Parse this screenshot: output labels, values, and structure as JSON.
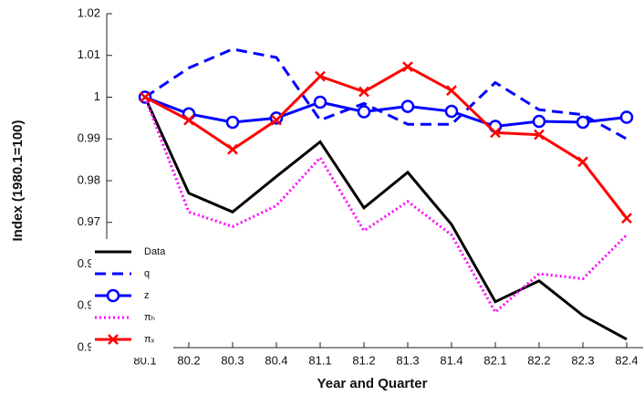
{
  "chart_data": {
    "type": "line",
    "x_label": "Year and Quarter",
    "y_label": "Index (1980.1=100)",
    "categories": [
      "80.1",
      "80.2",
      "80.3",
      "80.4",
      "81.1",
      "81.2",
      "81.3",
      "81.4",
      "82.1",
      "82.2",
      "82.3",
      "82.4"
    ],
    "ylim": [
      0.94,
      1.02
    ],
    "yticks": [
      0.94,
      0.95,
      0.96,
      0.97,
      0.98,
      0.99,
      1,
      1.01,
      1.02
    ],
    "legend": "lower left",
    "series": [
      {
        "name": "Data",
        "color": "#000000",
        "style": "solid",
        "values": [
          1,
          0.977,
          0.9725,
          0.981,
          0.9893,
          0.9735,
          0.982,
          0.9695,
          0.951,
          0.956,
          0.9477,
          0.942
        ]
      },
      {
        "name": "q",
        "color": "#0000ff",
        "style": "dashed",
        "values": [
          1,
          1.007,
          1.0115,
          1.0095,
          0.9945,
          0.9985,
          0.9935,
          0.9935,
          1.0035,
          0.997,
          0.9958,
          0.99
        ]
      },
      {
        "name": "z",
        "color": "#0000ff",
        "style": "solid",
        "marker": "o",
        "values": [
          1,
          0.996,
          0.994,
          0.995,
          0.9988,
          0.9965,
          0.9978,
          0.9966,
          0.993,
          0.9942,
          0.994,
          0.9952
        ]
      },
      {
        "name": "πₕ",
        "color": "#ff00ff",
        "style": "dotted",
        "values": [
          1,
          0.9725,
          0.969,
          0.974,
          0.9855,
          0.968,
          0.975,
          0.967,
          0.9485,
          0.9577,
          0.9565,
          0.967
        ]
      },
      {
        "name": "πₓ",
        "color": "#ff0000",
        "style": "solid",
        "marker": "x",
        "values": [
          1,
          0.9945,
          0.9875,
          0.9945,
          1.005,
          1.0013,
          1.0073,
          1.0016,
          0.9915,
          0.991,
          0.9845,
          0.971
        ]
      }
    ]
  }
}
